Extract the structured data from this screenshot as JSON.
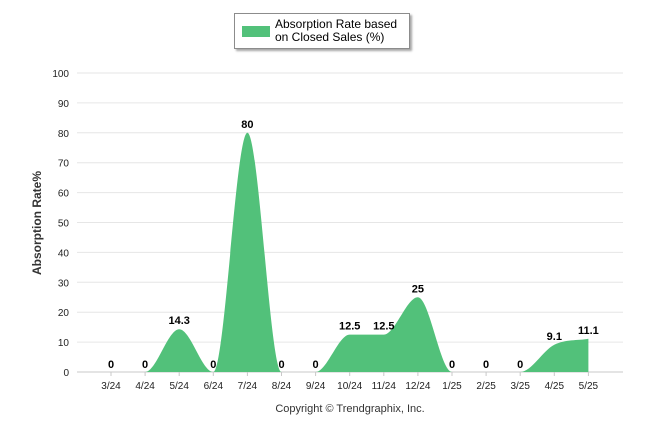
{
  "legend": {
    "label": "Absorption Rate based on Closed Sales (%)",
    "color": "#52c17a"
  },
  "copyright": "Copyright © Trendgraphix, Inc.",
  "chart_data": {
    "type": "area",
    "categories": [
      "3/24",
      "4/24",
      "5/24",
      "6/24",
      "7/24",
      "8/24",
      "9/24",
      "10/24",
      "11/24",
      "12/24",
      "1/25",
      "2/25",
      "3/25",
      "4/25",
      "5/25"
    ],
    "series": [
      {
        "name": "Absorption Rate based on Closed Sales (%)",
        "values": [
          0,
          0,
          14.3,
          0,
          80,
          0,
          0,
          12.5,
          12.5,
          25,
          0,
          0,
          0,
          9.1,
          11.1
        ]
      }
    ],
    "data_labels": [
      "0",
      "0",
      "14.3",
      "0",
      "80",
      "0",
      "0",
      "12.5",
      "12.5",
      "25",
      "0",
      "0",
      "0",
      "9.1",
      "11.1"
    ],
    "ylabel": "Absorption Rate%",
    "xlabel": "",
    "ylim": [
      0,
      100
    ],
    "yticks": [
      0,
      10,
      20,
      30,
      40,
      50,
      60,
      70,
      80,
      90,
      100
    ],
    "grid": true,
    "legend_position": "top-center"
  }
}
